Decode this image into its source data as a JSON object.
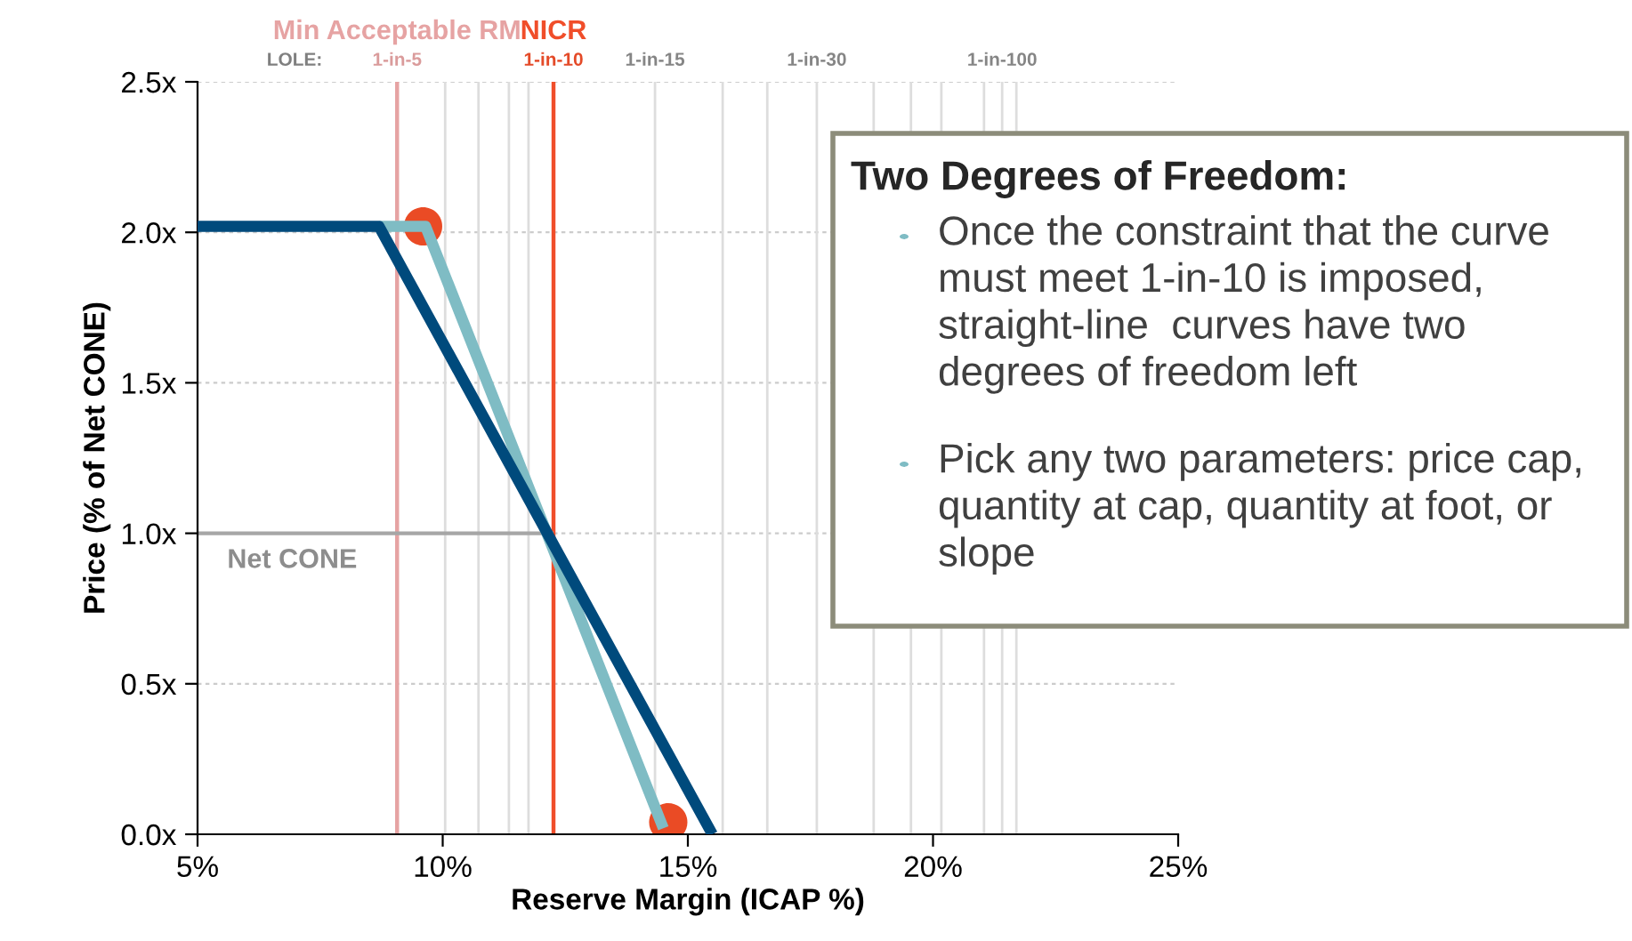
{
  "chart_data": {
    "type": "line",
    "xlabel": "Reserve Margin (ICAP %)",
    "ylabel": "Price (% of Net CONE)",
    "xlim": [
      5,
      25
    ],
    "xticks": [
      {
        "value": 5,
        "label": "5%"
      },
      {
        "value": 10,
        "label": "10%"
      },
      {
        "value": 15,
        "label": "15%"
      },
      {
        "value": 20,
        "label": "20%"
      },
      {
        "value": 25,
        "label": "25%"
      }
    ],
    "ylim": [
      0,
      2.5
    ],
    "yticks": [
      {
        "value": 0,
        "label": "0.0x"
      },
      {
        "value": 0.5,
        "label": "0.5x"
      },
      {
        "value": 1.0,
        "label": "1.0x"
      },
      {
        "value": 1.5,
        "label": "1.5x"
      },
      {
        "value": 2.0,
        "label": "2.0x"
      },
      {
        "value": 2.5,
        "label": "2.5x"
      }
    ],
    "grid": "y",
    "legend": false,
    "series": [
      {
        "name": "Net CONE",
        "color": "#a6a6a6",
        "x": [
          5,
          12.26
        ],
        "values": [
          1.0,
          1.0
        ]
      },
      {
        "color": "#7fbcc4",
        "x": [
          8.7,
          9.65,
          14.5
        ],
        "values": [
          2.02,
          2.02,
          0.02
        ]
      },
      {
        "color": "#004a7c",
        "x": [
          5,
          8.7,
          15.5
        ],
        "values": [
          2.02,
          2.02,
          0.0
        ]
      },
      {
        "type": "scatter",
        "color": "#ea4b25",
        "x": [
          9.6,
          14.6
        ],
        "values": [
          2.02,
          0.04
        ]
      }
    ],
    "ref_lines": [
      {
        "axis": "x",
        "value": 9.07,
        "label": "1-in-5",
        "color": "#e6a3a3"
      },
      {
        "axis": "x",
        "value": 10.05,
        "color": "#dddddd"
      },
      {
        "axis": "x",
        "value": 10.73,
        "color": "#dddddd"
      },
      {
        "axis": "x",
        "value": 11.35,
        "color": "#dddddd"
      },
      {
        "axis": "x",
        "value": 11.75,
        "color": "#dddddd"
      },
      {
        "axis": "x",
        "value": 12.26,
        "label": "1-in-10",
        "color": "#f04e2a"
      },
      {
        "axis": "x",
        "value": 14.33,
        "label": "1-in-15",
        "color": "#dddddd"
      },
      {
        "axis": "x",
        "value": 15.71,
        "color": "#dddddd"
      },
      {
        "axis": "x",
        "value": 16.62,
        "color": "#dddddd"
      },
      {
        "axis": "x",
        "value": 17.63,
        "label": "1-in-30",
        "color": "#dddddd"
      },
      {
        "axis": "x",
        "value": 18.79,
        "color": "#dddddd"
      },
      {
        "axis": "x",
        "value": 19.55,
        "color": "#dddddd"
      },
      {
        "axis": "x",
        "value": 20.17,
        "color": "#dddddd"
      },
      {
        "axis": "x",
        "value": 21.04,
        "color": "#dddddd"
      },
      {
        "axis": "x",
        "value": 21.41,
        "label": "1-in-100",
        "color": "#dddddd"
      },
      {
        "axis": "x",
        "value": 21.7,
        "color": "#dddddd"
      }
    ],
    "annotations": [
      {
        "text": "Min Acceptable RM",
        "x": 9.07,
        "y": 2.5
      },
      {
        "text": "NICR",
        "x": 12.26,
        "y": 2.5
      },
      "LOLE:",
      "Two Degrees of Freedom:",
      "Once the constraint that the curve\nmust meet 1-in-10 is imposed,\nstraight-line  curves have two\ndegrees of freedom left",
      "Pick any two parameters: price cap,\nquantity at cap, quantity at foot, or\nslope"
    ]
  }
}
